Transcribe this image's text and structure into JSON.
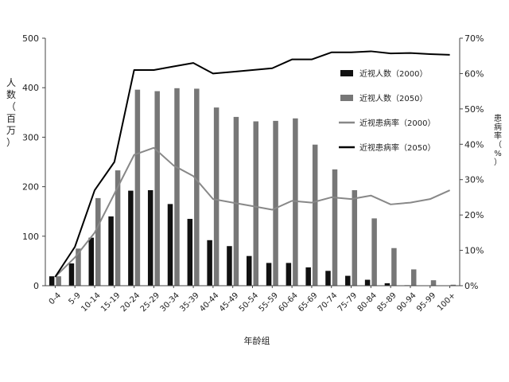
{
  "chart_data": {
    "type": "bar",
    "xlabel": "年龄组",
    "ylabel": "人数（百万）",
    "y2label": "患病率（%）",
    "ylim": [
      0,
      500
    ],
    "yticks": [
      "0",
      "100",
      "200",
      "300",
      "400",
      "500"
    ],
    "y2lim": [
      0,
      70
    ],
    "y2ticks": [
      "0%",
      "10%",
      "20%",
      "30%",
      "40%",
      "50%",
      "60%",
      "70%"
    ],
    "categories": [
      "0-4",
      "5-9",
      "10-14",
      "15-19",
      "20-24",
      "25-29",
      "30-34",
      "35-39",
      "40-44",
      "45-49",
      "50-54",
      "55-59",
      "60-64",
      "65-69",
      "70-74",
      "75-79",
      "80-84",
      "85-89",
      "90-94",
      "95-99",
      "100+"
    ],
    "series": [
      {
        "name": "近视人数（2000）",
        "kind": "bar",
        "axis": "left",
        "color": "#111111",
        "values": [
          19,
          45,
          97,
          140,
          192,
          193,
          165,
          135,
          92,
          80,
          60,
          46,
          46,
          37,
          30,
          20,
          12,
          5,
          1,
          0,
          0
        ]
      },
      {
        "name": "近视人数（2050）",
        "kind": "bar",
        "axis": "left",
        "color": "#777777",
        "values": [
          19,
          75,
          177,
          233,
          396,
          393,
          399,
          398,
          360,
          341,
          332,
          333,
          338,
          285,
          235,
          193,
          136,
          76,
          33,
          11,
          2
        ]
      },
      {
        "name": "近视患病率（2000）",
        "kind": "line",
        "axis": "right",
        "color": "#888888",
        "values": [
          2.5,
          8,
          15,
          26,
          37,
          39,
          34,
          31,
          24.5,
          23.5,
          22.5,
          21.5,
          24,
          23.5,
          25,
          24.5,
          25.5,
          23,
          23.5,
          24.5,
          27
        ]
      },
      {
        "name": "近视患病率（2050）",
        "kind": "line",
        "axis": "right",
        "color": "#000000",
        "values": [
          2.5,
          11,
          27,
          35,
          61,
          61,
          62,
          63,
          60,
          60.5,
          61,
          61.5,
          64,
          64,
          66,
          66,
          66.3,
          65.7,
          65.8,
          65.5,
          65.3
        ]
      }
    ],
    "legend": {
      "placement": "right-upper"
    },
    "grid": false
  }
}
